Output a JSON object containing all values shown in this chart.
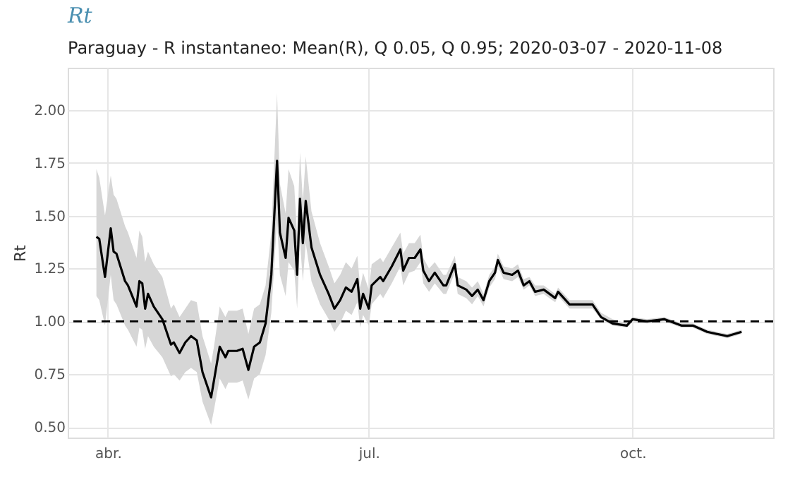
{
  "chart_data": {
    "type": "line",
    "title": "Rt",
    "subtitle": "Paraguay - R instantaneo: Mean(R), Q 0.05, Q 0.95;  2020-03-07 - 2020-11-08",
    "ylabel": "Rt",
    "x": [
      "2020-03-28",
      "2020-03-29",
      "2020-03-31",
      "2020-04-02",
      "2020-04-03",
      "2020-04-04",
      "2020-04-07",
      "2020-04-08",
      "2020-04-11",
      "2020-04-12",
      "2020-04-13",
      "2020-04-14",
      "2020-04-15",
      "2020-04-17",
      "2020-04-20",
      "2020-04-23",
      "2020-04-24",
      "2020-04-26",
      "2020-04-28",
      "2020-04-30",
      "2020-05-02",
      "2020-05-04",
      "2020-05-07",
      "2020-05-08",
      "2020-05-10",
      "2020-05-12",
      "2020-05-13",
      "2020-05-16",
      "2020-05-18",
      "2020-05-20",
      "2020-05-22",
      "2020-05-24",
      "2020-05-26",
      "2020-05-28",
      "2020-05-30",
      "2020-05-31",
      "2020-06-02",
      "2020-06-03",
      "2020-06-05",
      "2020-06-06",
      "2020-06-07",
      "2020-06-08",
      "2020-06-09",
      "2020-06-11",
      "2020-06-14",
      "2020-06-17",
      "2020-06-19",
      "2020-06-21",
      "2020-06-23",
      "2020-06-25",
      "2020-06-27",
      "2020-06-28",
      "2020-06-29",
      "2020-07-01",
      "2020-07-02",
      "2020-07-05",
      "2020-07-06",
      "2020-07-09",
      "2020-07-12",
      "2020-07-13",
      "2020-07-15",
      "2020-07-17",
      "2020-07-19",
      "2020-07-20",
      "2020-07-22",
      "2020-07-24",
      "2020-07-27",
      "2020-07-28",
      "2020-07-31",
      "2020-08-01",
      "2020-08-04",
      "2020-08-06",
      "2020-08-08",
      "2020-08-10",
      "2020-08-12",
      "2020-08-14",
      "2020-08-15",
      "2020-08-17",
      "2020-08-20",
      "2020-08-22",
      "2020-08-24",
      "2020-08-26",
      "2020-08-28",
      "2020-08-31",
      "2020-09-02",
      "2020-09-04",
      "2020-09-05",
      "2020-09-09",
      "2020-09-17",
      "2020-09-20",
      "2020-09-24",
      "2020-09-29",
      "2020-10-01",
      "2020-10-06",
      "2020-10-12",
      "2020-10-18",
      "2020-10-22",
      "2020-10-27",
      "2020-11-03",
      "2020-11-08"
    ],
    "series": [
      {
        "color": "#000000",
        "values": [
          1.4,
          1.39,
          1.21,
          1.44,
          1.33,
          1.32,
          1.19,
          1.17,
          1.07,
          1.19,
          1.18,
          1.06,
          1.13,
          1.07,
          1.01,
          0.89,
          0.9,
          0.85,
          0.9,
          0.93,
          0.91,
          0.76,
          0.64,
          0.72,
          0.88,
          0.83,
          0.86,
          0.86,
          0.87,
          0.77,
          0.88,
          0.9,
          0.99,
          1.22,
          1.76,
          1.42,
          1.3,
          1.49,
          1.43,
          1.22,
          1.58,
          1.37,
          1.57,
          1.35,
          1.22,
          1.13,
          1.06,
          1.1,
          1.16,
          1.14,
          1.2,
          1.06,
          1.13,
          1.06,
          1.17,
          1.21,
          1.19,
          1.26,
          1.34,
          1.24,
          1.3,
          1.3,
          1.34,
          1.24,
          1.19,
          1.23,
          1.17,
          1.17,
          1.27,
          1.17,
          1.15,
          1.12,
          1.15,
          1.1,
          1.19,
          1.23,
          1.29,
          1.23,
          1.22,
          1.24,
          1.17,
          1.19,
          1.14,
          1.15,
          1.13,
          1.11,
          1.14,
          1.08,
          1.08,
          1.02,
          0.99,
          0.98,
          1.01,
          1.0,
          1.01,
          0.98,
          0.98,
          0.95,
          0.93,
          0.95
        ],
        "lower": [
          1.12,
          1.1,
          0.98,
          1.22,
          1.1,
          1.08,
          0.98,
          0.96,
          0.88,
          0.97,
          0.96,
          0.87,
          0.93,
          0.88,
          0.83,
          0.74,
          0.75,
          0.72,
          0.76,
          0.78,
          0.76,
          0.62,
          0.51,
          0.58,
          0.73,
          0.68,
          0.71,
          0.71,
          0.72,
          0.63,
          0.73,
          0.75,
          0.84,
          1.04,
          1.48,
          1.22,
          1.12,
          1.28,
          1.24,
          1.06,
          1.38,
          1.19,
          1.37,
          1.19,
          1.08,
          1.01,
          0.95,
          0.99,
          1.05,
          1.03,
          1.09,
          0.97,
          1.03,
          0.98,
          1.08,
          1.13,
          1.11,
          1.18,
          1.26,
          1.17,
          1.23,
          1.24,
          1.28,
          1.18,
          1.14,
          1.18,
          1.13,
          1.13,
          1.23,
          1.13,
          1.11,
          1.08,
          1.12,
          1.07,
          1.16,
          1.2,
          1.26,
          1.2,
          1.19,
          1.21,
          1.15,
          1.17,
          1.12,
          1.13,
          1.11,
          1.09,
          1.12,
          1.06,
          1.06,
          1.01,
          0.98,
          0.97,
          1.0,
          0.99,
          1.0,
          0.97,
          0.97,
          0.94,
          0.92,
          0.94
        ],
        "upper": [
          1.72,
          1.68,
          1.5,
          1.69,
          1.6,
          1.58,
          1.45,
          1.42,
          1.3,
          1.43,
          1.4,
          1.28,
          1.33,
          1.27,
          1.21,
          1.06,
          1.08,
          1.02,
          1.06,
          1.1,
          1.09,
          0.93,
          0.8,
          0.88,
          1.07,
          1.02,
          1.05,
          1.05,
          1.06,
          0.94,
          1.06,
          1.08,
          1.17,
          1.42,
          2.08,
          1.65,
          1.51,
          1.72,
          1.64,
          1.4,
          1.8,
          1.57,
          1.78,
          1.52,
          1.37,
          1.26,
          1.18,
          1.22,
          1.28,
          1.25,
          1.31,
          1.16,
          1.23,
          1.15,
          1.27,
          1.3,
          1.28,
          1.35,
          1.42,
          1.32,
          1.37,
          1.37,
          1.41,
          1.3,
          1.25,
          1.28,
          1.22,
          1.22,
          1.31,
          1.21,
          1.19,
          1.16,
          1.19,
          1.13,
          1.22,
          1.26,
          1.32,
          1.26,
          1.25,
          1.27,
          1.2,
          1.21,
          1.17,
          1.17,
          1.15,
          1.13,
          1.16,
          1.1,
          1.1,
          1.04,
          1.01,
          0.99,
          1.02,
          1.01,
          1.02,
          0.99,
          0.99,
          0.96,
          0.94,
          0.96
        ]
      }
    ],
    "xlim": [
      "2020-03-18",
      "2020-11-19"
    ],
    "xticks": [
      {
        "value": "2020-04-01",
        "label": "abr."
      },
      {
        "value": "2020-07-01",
        "label": "jul."
      },
      {
        "value": "2020-10-01",
        "label": "oct."
      }
    ],
    "ylim": [
      0.45,
      2.2
    ],
    "yticks": [
      {
        "value": 0.5,
        "label": "0.50"
      },
      {
        "value": 0.75,
        "label": "0.75"
      },
      {
        "value": 1.0,
        "label": "1.00"
      },
      {
        "value": 1.25,
        "label": "1.25"
      },
      {
        "value": 1.5,
        "label": "1.50"
      },
      {
        "value": 1.75,
        "label": "1.75"
      },
      {
        "value": 2.0,
        "label": "2.00"
      }
    ],
    "ref_lines": [
      {
        "axis": "y",
        "value": 1.0,
        "color": "#000000",
        "line_style": "dashed"
      }
    ],
    "grid": true,
    "marker": "none",
    "line_style": "solid"
  }
}
